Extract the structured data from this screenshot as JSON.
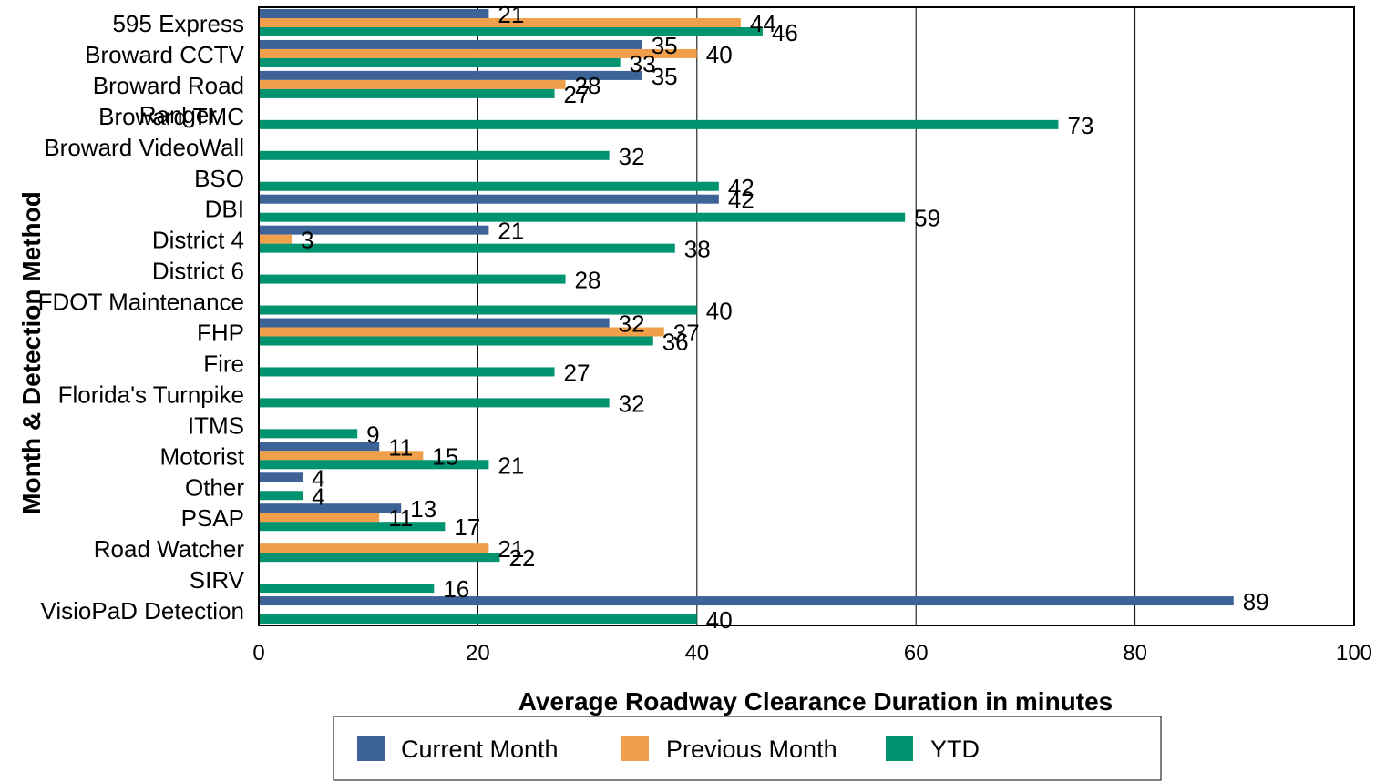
{
  "chart_data": {
    "type": "bar",
    "orientation": "horizontal",
    "xlabel": "Average Roadway Clearance Duration in minutes",
    "ylabel": "Month & Detection Method",
    "xlim": [
      0,
      100
    ],
    "xticks": [
      0,
      20,
      40,
      60,
      80,
      100
    ],
    "grid": "vertical",
    "legend_position": "bottom",
    "categories": [
      "595 Express",
      "Broward CCTV",
      "Broward Road Ranger",
      "Broward TMC",
      "Broward VideoWall",
      "BSO",
      "DBI",
      "District 4",
      "District 6",
      "FDOT Maintenance",
      "FHP",
      "Fire",
      "Florida's Turnpike",
      "ITMS",
      "Motorist",
      "Other",
      "PSAP",
      "Road Watcher",
      "SIRV",
      "VisioPaD Detection"
    ],
    "series": [
      {
        "name": "Current Month",
        "color": "#3e6497",
        "values": [
          21,
          35,
          35,
          null,
          null,
          null,
          42,
          21,
          null,
          null,
          32,
          null,
          null,
          null,
          11,
          4,
          13,
          null,
          null,
          89
        ]
      },
      {
        "name": "Previous Month",
        "color": "#f0a04b",
        "values": [
          44,
          40,
          28,
          null,
          null,
          null,
          null,
          3,
          null,
          null,
          37,
          null,
          null,
          null,
          15,
          null,
          11,
          21,
          null,
          null
        ]
      },
      {
        "name": "YTD",
        "color": "#00936f",
        "values": [
          46,
          33,
          27,
          73,
          32,
          42,
          59,
          38,
          28,
          40,
          36,
          27,
          32,
          9,
          21,
          4,
          17,
          22,
          16,
          40
        ]
      }
    ]
  }
}
